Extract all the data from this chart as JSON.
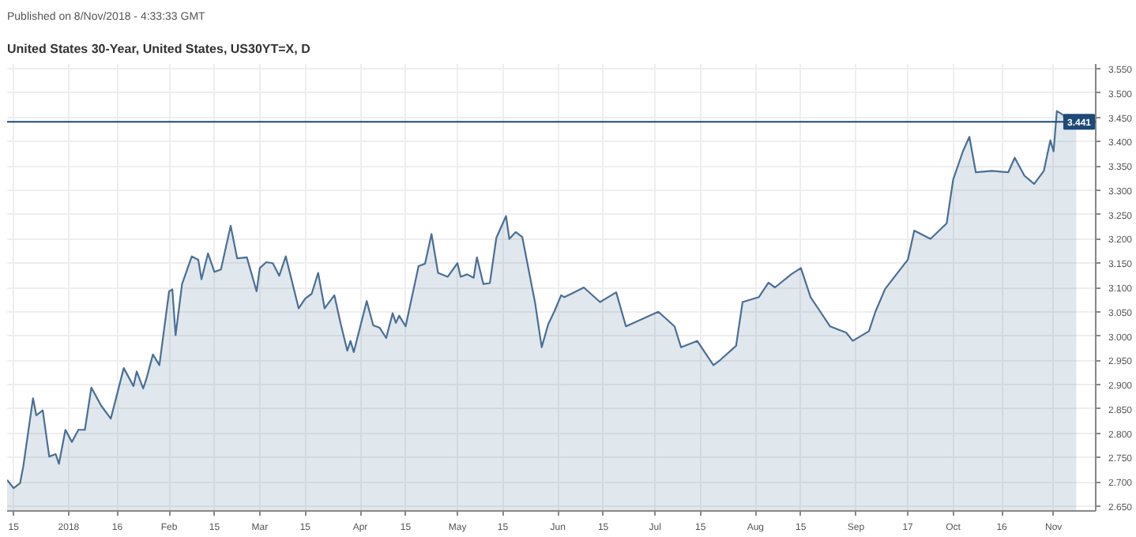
{
  "chart_data": {
    "type": "area",
    "title": "United States 30-Year, United States, US30YT=X, D",
    "annotations": [
      "Published on 8/Nov/2018 - 4:33:33 GMT"
    ],
    "x": [
      "2017-12-13",
      "2017-12-15",
      "2017-12-17",
      "2017-12-18",
      "2017-12-21",
      "2017-12-22",
      "2017-12-24",
      "2017-12-26",
      "2017-12-28",
      "2017-12-29",
      "2017-12-31",
      "2018-01-02",
      "2018-01-04",
      "2018-01-06",
      "2018-01-08",
      "2018-01-11",
      "2018-01-14",
      "2018-01-18",
      "2018-01-21",
      "2018-01-22",
      "2018-01-24",
      "2018-01-25",
      "2018-01-27",
      "2018-01-29",
      "2018-02-01",
      "2018-02-02",
      "2018-02-03",
      "2018-02-05",
      "2018-02-08",
      "2018-02-10",
      "2018-02-11",
      "2018-02-13",
      "2018-02-15",
      "2018-02-17",
      "2018-02-20",
      "2018-02-22",
      "2018-02-25",
      "2018-02-28",
      "2018-03-01",
      "2018-03-03",
      "2018-03-05",
      "2018-03-07",
      "2018-03-09",
      "2018-03-13",
      "2018-03-15",
      "2018-03-17",
      "2018-03-19",
      "2018-03-21",
      "2018-03-24",
      "2018-03-26",
      "2018-03-28",
      "2018-03-29",
      "2018-03-30",
      "2018-04-03",
      "2018-04-05",
      "2018-04-07",
      "2018-04-09",
      "2018-04-11",
      "2018-04-12",
      "2018-04-13",
      "2018-04-15",
      "2018-04-19",
      "2018-04-21",
      "2018-04-23",
      "2018-04-25",
      "2018-04-28",
      "2018-05-01",
      "2018-05-02",
      "2018-05-04",
      "2018-05-06",
      "2018-05-07",
      "2018-05-09",
      "2018-05-11",
      "2018-05-13",
      "2018-05-16",
      "2018-05-17",
      "2018-05-19",
      "2018-05-21",
      "2018-05-25",
      "2018-05-27",
      "2018-05-29",
      "2018-05-31",
      "2018-06-02",
      "2018-06-03",
      "2018-06-06",
      "2018-06-09",
      "2018-06-14",
      "2018-06-19",
      "2018-06-22",
      "2018-07-02",
      "2018-07-07",
      "2018-07-09",
      "2018-07-14",
      "2018-07-19",
      "2018-07-21",
      "2018-07-26",
      "2018-07-28",
      "2018-08-02",
      "2018-08-05",
      "2018-08-07",
      "2018-08-12",
      "2018-08-15",
      "2018-08-18",
      "2018-08-21",
      "2018-08-24",
      "2018-08-29",
      "2018-08-31",
      "2018-09-05",
      "2018-09-07",
      "2018-09-10",
      "2018-09-15",
      "2018-09-17",
      "2018-09-19",
      "2018-09-24",
      "2018-09-29",
      "2018-10-01",
      "2018-10-04",
      "2018-10-06",
      "2018-10-08",
      "2018-10-13",
      "2018-10-18",
      "2018-10-20",
      "2018-10-23",
      "2018-10-26",
      "2018-10-29",
      "2018-10-31",
      "2018-11-01",
      "2018-11-02",
      "2018-11-04",
      "2018-11-05",
      "2018-11-07",
      "2018-11-08"
    ],
    "series": [
      {
        "color": "#4a6f95",
        "values": [
          2.704,
          2.687,
          2.697,
          2.732,
          2.872,
          2.837,
          2.847,
          2.752,
          2.757,
          2.737,
          2.807,
          2.782,
          2.807,
          2.807,
          2.894,
          2.857,
          2.83,
          2.934,
          2.897,
          2.927,
          2.892,
          2.912,
          2.962,
          2.94,
          3.092,
          3.096,
          3.002,
          3.107,
          3.164,
          3.157,
          3.117,
          3.17,
          3.132,
          3.137,
          3.227,
          3.16,
          3.162,
          3.092,
          3.14,
          3.152,
          3.15,
          3.124,
          3.164,
          3.057,
          3.077,
          3.087,
          3.13,
          3.057,
          3.084,
          3.024,
          2.97,
          2.99,
          2.967,
          3.072,
          3.022,
          3.017,
          2.996,
          3.047,
          3.027,
          3.042,
          3.02,
          3.144,
          3.149,
          3.21,
          3.13,
          3.122,
          3.15,
          3.122,
          3.127,
          3.12,
          3.162,
          3.107,
          3.109,
          3.202,
          3.247,
          3.2,
          3.214,
          3.204,
          3.067,
          2.977,
          3.024,
          3.052,
          3.084,
          3.08,
          3.09,
          3.1,
          3.07,
          3.09,
          3.02,
          3.05,
          3.02,
          2.977,
          2.99,
          2.94,
          2.95,
          2.98,
          3.07,
          3.08,
          3.11,
          3.1,
          3.127,
          3.14,
          3.08,
          3.05,
          3.02,
          3.007,
          2.99,
          3.01,
          3.05,
          3.097,
          3.14,
          3.157,
          3.217,
          3.2,
          3.232,
          3.322,
          3.38,
          3.41,
          3.337,
          3.34,
          3.337,
          3.367,
          3.33,
          3.313,
          3.34,
          3.403,
          3.38,
          3.463,
          3.455,
          3.436,
          3.441,
          3.441
        ]
      }
    ],
    "xlim": [
      "2017-12-13",
      "2018-11-14"
    ],
    "xticks": [
      {
        "value": "2017-12-15",
        "label": "15"
      },
      {
        "value": "2018-01-01",
        "label": "2018"
      },
      {
        "value": "2018-01-16",
        "label": "16"
      },
      {
        "value": "2018-02-01",
        "label": "Feb"
      },
      {
        "value": "2018-02-15",
        "label": "15"
      },
      {
        "value": "2018-03-01",
        "label": "Mar"
      },
      {
        "value": "2018-03-15",
        "label": "15"
      },
      {
        "value": "2018-04-01",
        "label": "Apr"
      },
      {
        "value": "2018-04-15",
        "label": "15"
      },
      {
        "value": "2018-05-01",
        "label": "May"
      },
      {
        "value": "2018-05-15",
        "label": "15"
      },
      {
        "value": "2018-06-01",
        "label": "Jun"
      },
      {
        "value": "2018-06-15",
        "label": "15"
      },
      {
        "value": "2018-07-01",
        "label": "Jul"
      },
      {
        "value": "2018-07-15",
        "label": "15"
      },
      {
        "value": "2018-08-01",
        "label": "Aug"
      },
      {
        "value": "2018-08-15",
        "label": "15"
      },
      {
        "value": "2018-09-01",
        "label": "Sep"
      },
      {
        "value": "2018-09-17",
        "label": "17"
      },
      {
        "value": "2018-10-01",
        "label": "Oct"
      },
      {
        "value": "2018-10-16",
        "label": "16"
      },
      {
        "value": "2018-11-01",
        "label": "Nov"
      }
    ],
    "ylim": [
      2.64,
      3.56
    ],
    "yticks": [
      {
        "value": 2.65,
        "label": "2.650"
      },
      {
        "value": 2.7,
        "label": "2.700"
      },
      {
        "value": 2.75,
        "label": "2.750"
      },
      {
        "value": 2.8,
        "label": "2.800"
      },
      {
        "value": 2.85,
        "label": "2.850"
      },
      {
        "value": 2.9,
        "label": "2.900"
      },
      {
        "value": 2.95,
        "label": "2.950"
      },
      {
        "value": 3.0,
        "label": "3.000"
      },
      {
        "value": 3.05,
        "label": "3.050"
      },
      {
        "value": 3.1,
        "label": "3.100"
      },
      {
        "value": 3.15,
        "label": "3.150"
      },
      {
        "value": 3.2,
        "label": "3.200"
      },
      {
        "value": 3.25,
        "label": "3.250"
      },
      {
        "value": 3.3,
        "label": "3.300"
      },
      {
        "value": 3.35,
        "label": "3.350"
      },
      {
        "value": 3.4,
        "label": "3.400"
      },
      {
        "value": 3.45,
        "label": "3.450"
      },
      {
        "value": 3.5,
        "label": "3.500"
      },
      {
        "value": 3.55,
        "label": "3.550"
      }
    ],
    "ref_lines": [
      {
        "axis": "y",
        "value": 3.441,
        "label": "3.441",
        "color": "#1d4a77"
      }
    ],
    "grid": true,
    "marker": "none",
    "line_style": "solid"
  }
}
